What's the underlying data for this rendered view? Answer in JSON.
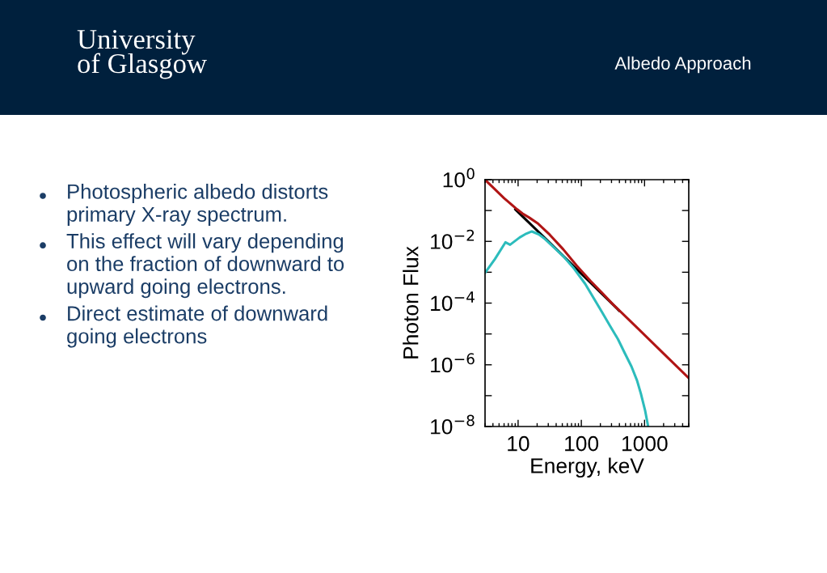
{
  "chart_data": {
    "type": "line",
    "title": "Albedo Approach",
    "annotations": [
      "University of Glasgow",
      "Photospheric albedo distorts primary X-ray spectrum.",
      "This effect will vary depending on the fraction of downward to upward going electrons.",
      "Direct estimate of downward going electrons"
    ],
    "xlabel": "Energy, keV",
    "ylabel": "Photon Flux",
    "log": "xy",
    "xlim": [
      3,
      5000
    ],
    "ylim": [
      1e-08,
      1
    ],
    "xticks": [
      10,
      100,
      1000
    ],
    "yticks": [
      {
        "value": 1,
        "label": "10$^{0}$"
      },
      {
        "value": 0.1,
        "label": null
      },
      {
        "value": 0.01,
        "label": "10$^{−2}$"
      },
      {
        "value": 0.001,
        "label": null
      },
      {
        "value": 0.0001,
        "label": "10$^{−4}$"
      },
      {
        "value": 1e-05,
        "label": null
      },
      {
        "value": 1e-06,
        "label": "10$^{−6}$"
      },
      {
        "value": 1e-07,
        "label": null
      },
      {
        "value": 1e-08,
        "label": "10$^{−8}$"
      }
    ],
    "series": [
      {
        "color": "#000000",
        "x": [
          9,
          20,
          50,
          100,
          200,
          400
        ],
        "values": [
          0.11,
          0.0225,
          0.0036,
          0.0009,
          0.000225,
          5.6e-05
        ]
      },
      {
        "color": "#2cbcbc",
        "x": [
          3,
          4.32,
          6.3,
          7.47,
          10.6,
          12.9,
          16.5,
          21.2,
          25.8,
          51.8,
          77,
          115,
          209,
          281,
          379,
          486,
          622,
          760,
          881,
          1023,
          1140
        ],
        "values": [
          0.00095,
          0.0027,
          0.0093,
          0.0078,
          0.0134,
          0.017,
          0.021,
          0.017,
          0.0126,
          0.0033,
          0.0013,
          0.00042,
          5.4e-05,
          1.9e-05,
          6.8e-06,
          2.4e-06,
          8.7e-07,
          3.1e-07,
          1.1e-07,
          3.2e-08,
          1e-08
        ]
      },
      {
        "color": "#b01515",
        "x": [
          3,
          6,
          9.6,
          11.7,
          15,
          20.2,
          31.6,
          51.8,
          85,
          140,
          220,
          310,
          785,
          2000,
          5000
        ],
        "values": [
          1,
          0.25,
          0.11,
          0.08,
          0.059,
          0.039,
          0.0165,
          0.0055,
          0.0016,
          0.00052,
          0.0002,
          9.5e-05,
          1.5e-05,
          2.3e-06,
          3.7e-07
        ]
      }
    ]
  }
}
